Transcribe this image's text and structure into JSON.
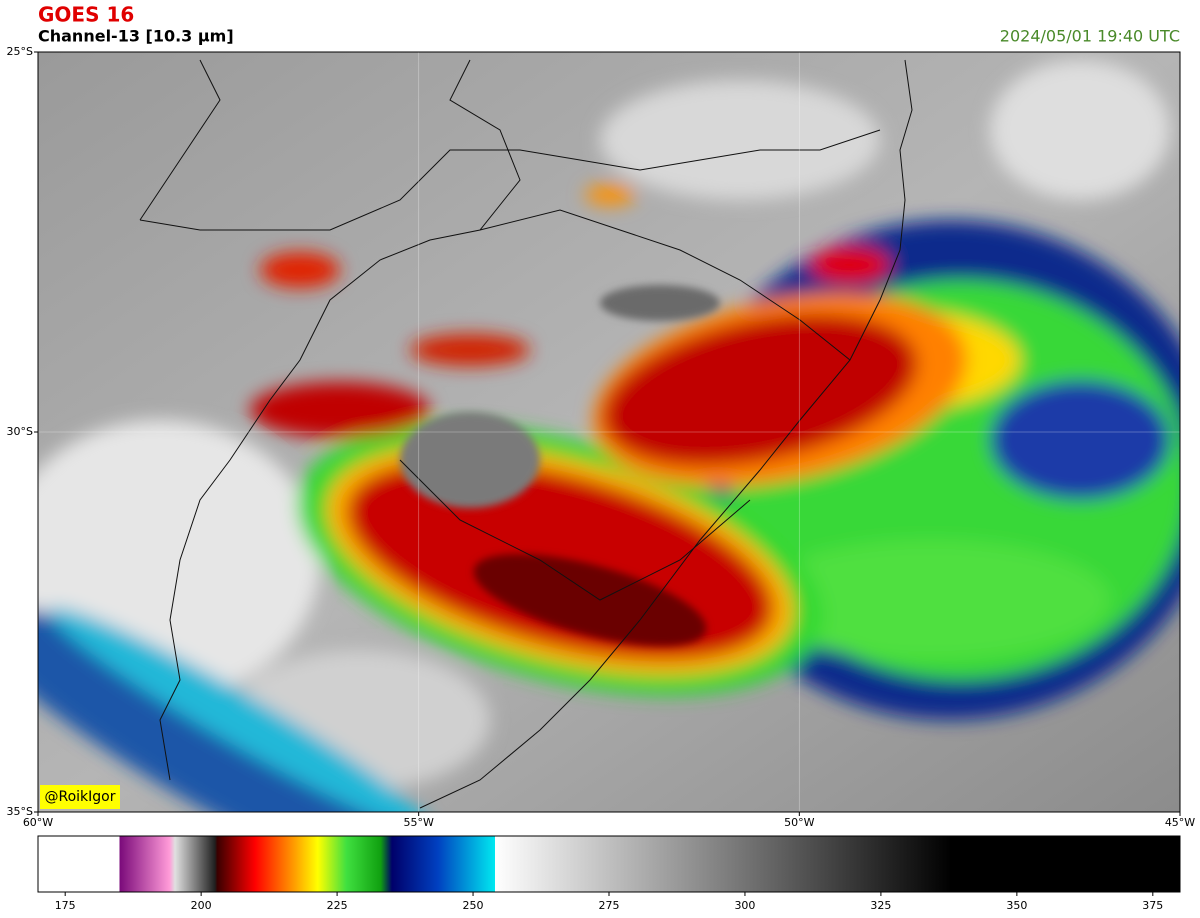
{
  "header": {
    "title": "GOES 16",
    "subtitle": "Channel-13 [10.3 µm]",
    "timestamp": "2024/05/01 19:40 UTC"
  },
  "map": {
    "xlim": [
      -60,
      -45
    ],
    "ylim": [
      -35,
      -25
    ],
    "xticks": [
      {
        "value": -60,
        "label": "60°W"
      },
      {
        "value": -55,
        "label": "55°W"
      },
      {
        "value": -50,
        "label": "50°W"
      },
      {
        "value": -45,
        "label": "45°W"
      }
    ],
    "yticks": [
      {
        "value": -35,
        "label": "35°S"
      },
      {
        "value": -30,
        "label": "30°S"
      },
      {
        "value": -25,
        "label": "25°S"
      }
    ],
    "grid": true,
    "credit": "@RoikIgor"
  },
  "colorbar": {
    "lim": [
      170,
      380
    ],
    "ticks": [
      175,
      200,
      225,
      250,
      275,
      300,
      325,
      350,
      375
    ]
  }
}
